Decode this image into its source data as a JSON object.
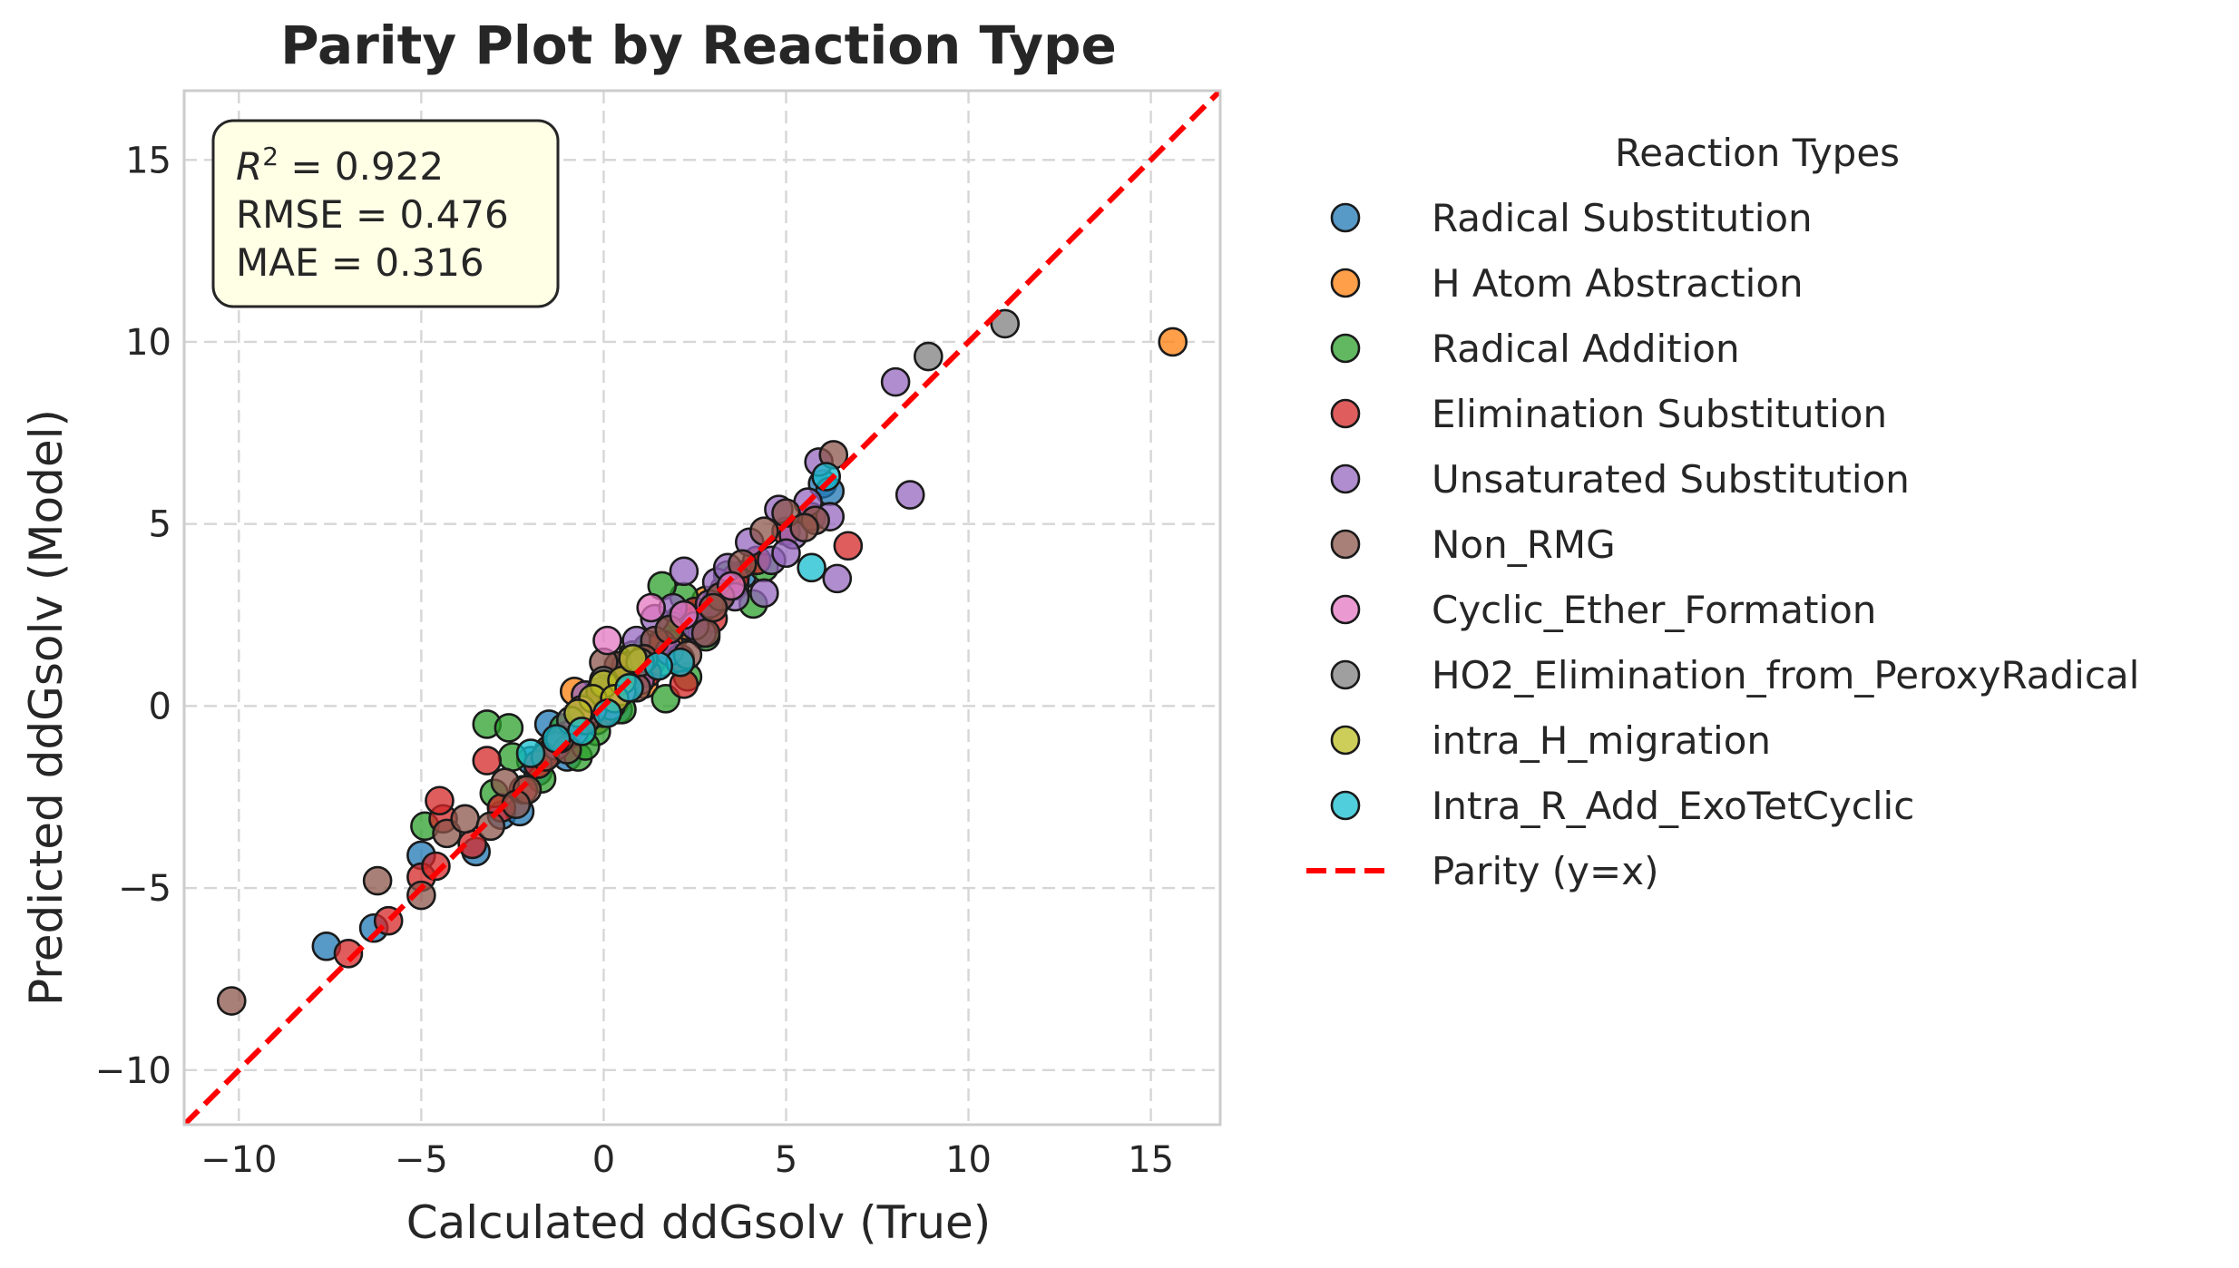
{
  "chart_data": {
    "type": "scatter",
    "title": "Parity Plot by Reaction Type",
    "xlabel": "Calculated ddGsolv (True)",
    "ylabel": "Predicted ddGsolv (Model)",
    "xlim": [
      -11.5,
      16.9
    ],
    "ylim": [
      -11.5,
      16.9
    ],
    "xticks": [
      -10,
      -5,
      0,
      5,
      10,
      15
    ],
    "yticks": [
      -10,
      -5,
      0,
      5,
      10,
      15
    ],
    "xtick_labels": [
      "−10",
      "−5",
      "0",
      "5",
      "10",
      "15"
    ],
    "ytick_labels": [
      "−10",
      "−5",
      "0",
      "5",
      "10",
      "15"
    ],
    "grid": true,
    "legend": {
      "title": "Reaction Types",
      "placement": "outside right"
    },
    "stats": {
      "r2_label": "R",
      "r2_sup": "2",
      "r2_value": " = 0.922",
      "rmse": "RMSE = 0.476",
      "mae": "MAE = 0.316"
    },
    "parity_line": {
      "name": "Parity (y=x)",
      "color": "#ff0000",
      "style": "dashed"
    },
    "series": [
      {
        "name": "Radical Substitution",
        "color": "#1f77b4",
        "points": [
          [
            -7.6,
            -6.6
          ],
          [
            -6.3,
            -6.1
          ],
          [
            -5.0,
            -4.1
          ],
          [
            -3.5,
            -4.0
          ],
          [
            -2.8,
            -3.0
          ],
          [
            -2.3,
            -2.9
          ],
          [
            -1.8,
            -1.8
          ],
          [
            -1.5,
            -0.5
          ],
          [
            -1.2,
            -1.0
          ],
          [
            -0.9,
            -0.6
          ],
          [
            -0.6,
            -0.3
          ],
          [
            -0.3,
            0.0
          ],
          [
            0.2,
            0.3
          ],
          [
            0.6,
            0.6
          ],
          [
            1.0,
            1.1
          ],
          [
            1.5,
            1.4
          ],
          [
            2.0,
            2.0
          ],
          [
            2.6,
            2.5
          ],
          [
            3.2,
            3.0
          ],
          [
            3.8,
            3.6
          ],
          [
            6.0,
            6.1
          ],
          [
            6.2,
            5.9
          ],
          [
            -2.0,
            -1.5
          ],
          [
            -1.0,
            -1.4
          ],
          [
            0.4,
            -0.1
          ],
          [
            1.2,
            1.6
          ]
        ]
      },
      {
        "name": "H Atom Abstraction",
        "color": "#ff7f0e",
        "points": [
          [
            15.6,
            10.0
          ],
          [
            -0.8,
            0.4
          ],
          [
            -0.4,
            0.0
          ],
          [
            0.0,
            0.3
          ],
          [
            0.3,
            0.5
          ],
          [
            0.8,
            1.0
          ],
          [
            1.3,
            1.2
          ],
          [
            1.8,
            1.7
          ],
          [
            2.3,
            2.2
          ],
          [
            2.8,
            2.9
          ],
          [
            3.3,
            3.2
          ],
          [
            -1.5,
            -1.2
          ],
          [
            -0.2,
            -0.4
          ],
          [
            0.5,
            0.8
          ],
          [
            1.1,
            0.6
          ],
          [
            2.1,
            2.4
          ]
        ]
      },
      {
        "name": "Radical Addition",
        "color": "#2ca02c",
        "points": [
          [
            -4.9,
            -3.3
          ],
          [
            -3.2,
            -0.5
          ],
          [
            -2.6,
            -0.6
          ],
          [
            -3.0,
            -2.4
          ],
          [
            -2.5,
            -1.4
          ],
          [
            -1.7,
            -2.0
          ],
          [
            -1.1,
            -0.6
          ],
          [
            -0.7,
            -1.4
          ],
          [
            -0.2,
            -0.7
          ],
          [
            0.3,
            0.1
          ],
          [
            0.8,
            1.4
          ],
          [
            1.2,
            1.6
          ],
          [
            1.6,
            1.2
          ],
          [
            1.9,
            2.2
          ],
          [
            2.2,
            3.0
          ],
          [
            2.6,
            2.1
          ],
          [
            3.1,
            2.9
          ],
          [
            3.6,
            3.3
          ],
          [
            4.1,
            2.8
          ],
          [
            4.4,
            3.8
          ],
          [
            1.6,
            3.3
          ],
          [
            1.7,
            0.2
          ],
          [
            2.3,
            0.8
          ],
          [
            0.5,
            -0.1
          ],
          [
            -0.5,
            -1.1
          ],
          [
            2.8,
            1.9
          ],
          [
            3.4,
            3.6
          ]
        ]
      },
      {
        "name": "Elimination Substitution",
        "color": "#d62728",
        "points": [
          [
            -7.0,
            -6.8
          ],
          [
            -5.9,
            -5.9
          ],
          [
            -5.0,
            -4.7
          ],
          [
            -4.6,
            -4.4
          ],
          [
            -4.4,
            -3.1
          ],
          [
            -4.5,
            -2.6
          ],
          [
            -3.6,
            -3.8
          ],
          [
            -3.2,
            -1.5
          ],
          [
            -2.8,
            -2.8
          ],
          [
            -2.2,
            -2.3
          ],
          [
            -1.5,
            -1.3
          ],
          [
            -1.0,
            -0.8
          ],
          [
            -0.4,
            -0.3
          ],
          [
            0.2,
            0.2
          ],
          [
            0.7,
            0.9
          ],
          [
            1.2,
            0.9
          ],
          [
            1.6,
            1.7
          ],
          [
            2.1,
            1.3
          ],
          [
            2.5,
            2.6
          ],
          [
            3.0,
            2.4
          ],
          [
            3.6,
            3.5
          ],
          [
            4.2,
            4.0
          ],
          [
            5.0,
            4.8
          ],
          [
            6.7,
            4.4
          ],
          [
            5.7,
            5.2
          ],
          [
            2.2,
            0.6
          ],
          [
            0.0,
            -0.2
          ],
          [
            -1.8,
            -1.6
          ]
        ]
      },
      {
        "name": "Unsaturated Substitution",
        "color": "#9467bd",
        "points": [
          [
            8.0,
            8.9
          ],
          [
            8.4,
            5.8
          ],
          [
            6.4,
            3.5
          ],
          [
            5.9,
            6.7
          ],
          [
            6.2,
            5.2
          ],
          [
            5.6,
            5.6
          ],
          [
            5.2,
            4.7
          ],
          [
            4.8,
            5.4
          ],
          [
            4.4,
            3.1
          ],
          [
            4.0,
            4.5
          ],
          [
            3.6,
            3.0
          ],
          [
            3.1,
            3.4
          ],
          [
            2.7,
            2.0
          ],
          [
            2.2,
            3.7
          ],
          [
            1.8,
            1.5
          ],
          [
            1.4,
            2.4
          ],
          [
            1.0,
            0.7
          ],
          [
            0.6,
            1.1
          ],
          [
            0.2,
            0.0
          ],
          [
            -0.3,
            -0.1
          ],
          [
            -0.8,
            -0.7
          ],
          [
            -1.3,
            -1.1
          ],
          [
            2.9,
            2.8
          ],
          [
            3.4,
            3.8
          ],
          [
            4.6,
            4.0
          ],
          [
            5.0,
            4.2
          ],
          [
            1.9,
            2.7
          ],
          [
            0.9,
            1.8
          ],
          [
            -0.5,
            0.3
          ],
          [
            2.5,
            2.2
          ]
        ]
      },
      {
        "name": "Non_RMG",
        "color": "#8c564b",
        "points": [
          [
            -10.2,
            -8.1
          ],
          [
            -6.2,
            -4.8
          ],
          [
            -5.0,
            -5.2
          ],
          [
            -4.3,
            -3.5
          ],
          [
            -3.8,
            -3.1
          ],
          [
            -3.1,
            -3.3
          ],
          [
            -2.7,
            -2.1
          ],
          [
            -2.1,
            -2.3
          ],
          [
            -1.6,
            -1.4
          ],
          [
            -1.0,
            -1.2
          ],
          [
            -0.5,
            -0.4
          ],
          [
            -0.1,
            0.4
          ],
          [
            0.4,
            1.1
          ],
          [
            0.9,
            0.5
          ],
          [
            1.4,
            1.8
          ],
          [
            1.8,
            2.1
          ],
          [
            2.3,
            1.4
          ],
          [
            2.8,
            2.0
          ],
          [
            3.2,
            3.0
          ],
          [
            3.8,
            3.9
          ],
          [
            4.4,
            4.8
          ],
          [
            5.0,
            5.3
          ],
          [
            5.8,
            5.1
          ],
          [
            6.3,
            6.9
          ],
          [
            5.5,
            4.9
          ],
          [
            0.0,
            1.2
          ],
          [
            -1.2,
            -0.9
          ],
          [
            -2.4,
            -2.7
          ],
          [
            1.1,
            1.3
          ],
          [
            3.0,
            2.7
          ]
        ]
      },
      {
        "name": "Cyclic_Ether_Formation",
        "color": "#e377c2",
        "points": [
          [
            0.1,
            1.8
          ],
          [
            1.3,
            2.7
          ],
          [
            -0.6,
            -0.1
          ],
          [
            0.5,
            0.4
          ],
          [
            2.2,
            2.5
          ],
          [
            3.5,
            3.3
          ]
        ]
      },
      {
        "name": "HO2_Elimination_from_PeroxyRadical",
        "color": "#7f7f7f",
        "points": [
          [
            11.0,
            10.5
          ],
          [
            8.9,
            9.6
          ],
          [
            0.0,
            0.7
          ],
          [
            -0.9,
            -0.4
          ],
          [
            1.0,
            1.2
          ]
        ]
      },
      {
        "name": "intra_H_migration",
        "color": "#bcbd22",
        "points": [
          [
            0.0,
            0.6
          ],
          [
            0.5,
            0.7
          ],
          [
            -0.3,
            0.2
          ],
          [
            0.8,
            1.3
          ],
          [
            0.3,
            0.2
          ],
          [
            -0.7,
            -0.2
          ]
        ]
      },
      {
        "name": "Intra_R_Add_ExoTetCyclic",
        "color": "#17becf",
        "points": [
          [
            5.7,
            3.8
          ],
          [
            6.1,
            6.3
          ],
          [
            2.1,
            1.2
          ],
          [
            0.1,
            -0.2
          ],
          [
            -0.6,
            -0.7
          ],
          [
            -1.3,
            -0.9
          ],
          [
            -2.0,
            -1.3
          ],
          [
            0.7,
            0.5
          ],
          [
            1.5,
            1.1
          ]
        ]
      }
    ]
  }
}
